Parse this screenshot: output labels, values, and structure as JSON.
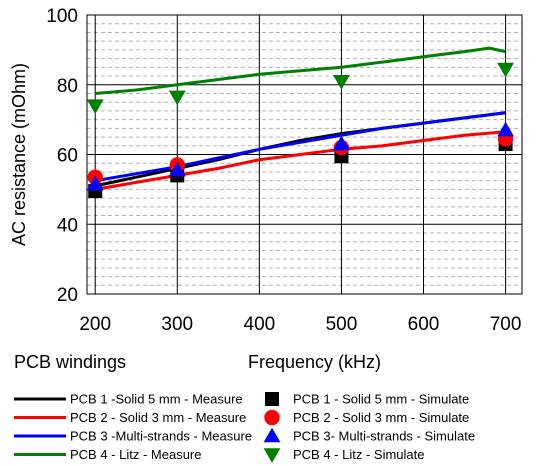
{
  "chart_data": {
    "type": "line",
    "xlabel": "Frequency (kHz)",
    "ylabel": "AC resistance (mOhm)",
    "corner_label": "PCB windings",
    "xlim": [
      190,
      720
    ],
    "ylim": [
      20,
      100
    ],
    "x_ticks": [
      200,
      300,
      400,
      500,
      600,
      700
    ],
    "y_ticks": [
      20,
      40,
      60,
      80,
      100
    ],
    "y_minor_step": 2.5,
    "grid": true,
    "legend_position": "bottom",
    "series": [
      {
        "name": "PCB 1 -Solid 5 mm - Measure",
        "kind": "line",
        "color": "#000000",
        "x": [
          200,
          250,
          300,
          350,
          400,
          450,
          500,
          550,
          600,
          650,
          700
        ],
        "y": [
          51,
          53.5,
          56,
          58.5,
          61.5,
          64,
          66,
          67.5,
          69,
          70.5,
          72
        ]
      },
      {
        "name": "PCB 2 - Solid 3 mm - Measure",
        "kind": "line",
        "color": "#ff0000",
        "x": [
          200,
          250,
          300,
          350,
          400,
          450,
          500,
          550,
          600,
          650,
          700
        ],
        "y": [
          50,
          52,
          54,
          56,
          58.5,
          60,
          61.5,
          62.5,
          64,
          65.5,
          66.5
        ]
      },
      {
        "name": "PCB 3 -Multi-strands -  Measure",
        "kind": "line",
        "color": "#0000ff",
        "x": [
          200,
          250,
          300,
          350,
          400,
          450,
          500,
          550,
          600,
          650,
          700
        ],
        "y": [
          52.5,
          54.5,
          56.5,
          59,
          61.5,
          63.5,
          65.5,
          67.5,
          69,
          70.5,
          72
        ]
      },
      {
        "name": "PCB 4 - Litz - Measure",
        "kind": "line",
        "color": "#008000",
        "x": [
          200,
          250,
          300,
          350,
          400,
          450,
          500,
          550,
          600,
          650,
          680,
          700
        ],
        "y": [
          77.5,
          78.5,
          80,
          81.5,
          83,
          84,
          85,
          86.5,
          88,
          89.5,
          90.5,
          89.5
        ]
      },
      {
        "name": "PCB 1 - Solid 5 mm - Simulate",
        "kind": "marker",
        "marker": "square",
        "color": "#000000",
        "x": [
          200,
          300,
          500,
          700
        ],
        "y": [
          49.5,
          54,
          59.5,
          63
        ]
      },
      {
        "name": "PCB 2 - Solid 3 mm - Simulate",
        "kind": "marker",
        "marker": "circle",
        "color": "#ff0000",
        "x": [
          200,
          300,
          500,
          700
        ],
        "y": [
          53.5,
          57,
          62,
          64.5
        ]
      },
      {
        "name": "PCB 3- Multi-strands - Simulate",
        "kind": "marker",
        "marker": "triangle-up",
        "color": "#0000ff",
        "x": [
          200,
          300,
          500,
          700
        ],
        "y": [
          51.5,
          55.5,
          63,
          67
        ]
      },
      {
        "name": "PCB 4 - Litz - Simulate",
        "kind": "marker",
        "marker": "triangle-down",
        "color": "#008000",
        "x": [
          200,
          300,
          500,
          700
        ],
        "y": [
          74,
          76.5,
          81,
          84.5
        ]
      }
    ]
  }
}
